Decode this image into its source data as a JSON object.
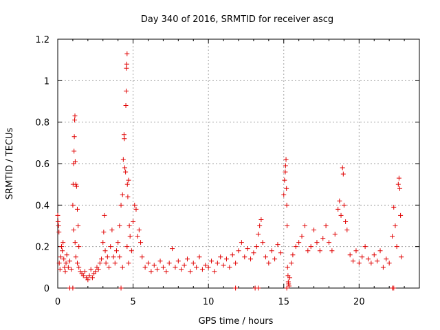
{
  "chart_data": {
    "type": "scatter",
    "title": "Day 340 of 2016, SRMTID for receiver ascg",
    "xlabel": "GPS time / hours",
    "ylabel": "SRMTID / TECUs",
    "xlim": [
      0,
      24
    ],
    "ylim": [
      0,
      1.2
    ],
    "x_ticks": [
      "0",
      "5",
      "10",
      "15",
      "20"
    ],
    "x_tick_values": [
      0,
      5,
      10,
      15,
      20
    ],
    "y_ticks": [
      "0",
      "0.2",
      "0.4",
      "0.6",
      "0.8",
      "1",
      "1.2"
    ],
    "y_tick_values": [
      0,
      0.2,
      0.4,
      0.6,
      0.8,
      1.0,
      1.2
    ],
    "grid": true,
    "marker": "+",
    "series": [
      {
        "name": "SRMTID",
        "color": "#e00000",
        "points": [
          [
            0.0,
            0.35
          ],
          [
            0.02,
            0.32
          ],
          [
            0.05,
            0.3
          ],
          [
            0.08,
            0.27
          ],
          [
            0.1,
            0.12
          ],
          [
            0.15,
            0.09
          ],
          [
            0.2,
            0.15
          ],
          [
            0.25,
            0.2
          ],
          [
            0.3,
            0.18
          ],
          [
            0.35,
            0.22
          ],
          [
            0.4,
            0.14
          ],
          [
            0.45,
            0.1
          ],
          [
            0.5,
            0.08
          ],
          [
            0.55,
            0.12
          ],
          [
            0.6,
            0.16
          ],
          [
            0.7,
            0.1
          ],
          [
            0.8,
            0.13
          ],
          [
            0.9,
            0.09
          ],
          [
            1.0,
            0.4
          ],
          [
            1.02,
            0.5
          ],
          [
            1.05,
            0.6
          ],
          [
            1.08,
            0.66
          ],
          [
            1.1,
            0.73
          ],
          [
            1.12,
            0.81
          ],
          [
            1.14,
            0.83
          ],
          [
            1.16,
            0.61
          ],
          [
            1.2,
            0.5
          ],
          [
            1.25,
            0.49
          ],
          [
            1.3,
            0.38
          ],
          [
            1.35,
            0.3
          ],
          [
            1.4,
            0.2
          ],
          [
            1.05,
            0.28
          ],
          [
            1.15,
            0.22
          ],
          [
            1.2,
            0.15
          ],
          [
            1.3,
            0.12
          ],
          [
            1.4,
            0.1
          ],
          [
            1.5,
            0.08
          ],
          [
            1.6,
            0.07
          ],
          [
            1.7,
            0.06
          ],
          [
            1.8,
            0.08
          ],
          [
            1.9,
            0.05
          ],
          [
            2.0,
            0.04
          ],
          [
            2.1,
            0.06
          ],
          [
            2.2,
            0.09
          ],
          [
            2.3,
            0.05
          ],
          [
            2.4,
            0.07
          ],
          [
            2.5,
            0.08
          ],
          [
            2.6,
            0.1
          ],
          [
            2.7,
            0.09
          ],
          [
            2.8,
            0.12
          ],
          [
            2.9,
            0.14
          ],
          [
            3.0,
            0.22
          ],
          [
            3.05,
            0.27
          ],
          [
            3.1,
            0.35
          ],
          [
            3.15,
            0.18
          ],
          [
            3.2,
            0.12
          ],
          [
            3.3,
            0.15
          ],
          [
            3.4,
            0.1
          ],
          [
            3.5,
            0.2
          ],
          [
            3.6,
            0.28
          ],
          [
            3.7,
            0.15
          ],
          [
            3.8,
            0.12
          ],
          [
            3.9,
            0.18
          ],
          [
            4.0,
            0.22
          ],
          [
            4.1,
            0.3
          ],
          [
            4.2,
            0.4
          ],
          [
            4.3,
            0.45
          ],
          [
            4.35,
            0.62
          ],
          [
            4.4,
            0.74
          ],
          [
            4.42,
            0.72
          ],
          [
            4.45,
            0.58
          ],
          [
            4.5,
            0.56
          ],
          [
            4.52,
            0.88
          ],
          [
            4.54,
            0.95
          ],
          [
            4.56,
            1.06
          ],
          [
            4.58,
            1.08
          ],
          [
            4.6,
            1.13
          ],
          [
            4.62,
            0.5
          ],
          [
            4.65,
            0.44
          ],
          [
            4.7,
            0.52
          ],
          [
            4.75,
            0.3
          ],
          [
            4.8,
            0.25
          ],
          [
            4.1,
            0.15
          ],
          [
            4.3,
            0.1
          ],
          [
            4.6,
            0.2
          ],
          [
            4.7,
            0.12
          ],
          [
            4.9,
            0.18
          ],
          [
            5.0,
            0.32
          ],
          [
            5.1,
            0.4
          ],
          [
            5.2,
            0.38
          ],
          [
            5.3,
            0.25
          ],
          [
            5.4,
            0.28
          ],
          [
            5.5,
            0.22
          ],
          [
            5.6,
            0.15
          ],
          [
            5.8,
            0.1
          ],
          [
            6.0,
            0.12
          ],
          [
            6.2,
            0.08
          ],
          [
            6.4,
            0.11
          ],
          [
            6.6,
            0.09
          ],
          [
            6.8,
            0.13
          ],
          [
            7.0,
            0.1
          ],
          [
            7.2,
            0.08
          ],
          [
            7.4,
            0.12
          ],
          [
            7.6,
            0.19
          ],
          [
            7.8,
            0.1
          ],
          [
            8.0,
            0.13
          ],
          [
            8.2,
            0.09
          ],
          [
            8.4,
            0.11
          ],
          [
            8.6,
            0.14
          ],
          [
            8.8,
            0.08
          ],
          [
            9.0,
            0.12
          ],
          [
            9.2,
            0.1
          ],
          [
            9.4,
            0.15
          ],
          [
            9.6,
            0.09
          ],
          [
            9.8,
            0.11
          ],
          [
            10.0,
            0.1
          ],
          [
            10.2,
            0.13
          ],
          [
            10.4,
            0.08
          ],
          [
            10.6,
            0.12
          ],
          [
            10.8,
            0.15
          ],
          [
            11.0,
            0.11
          ],
          [
            11.2,
            0.14
          ],
          [
            11.4,
            0.1
          ],
          [
            11.6,
            0.16
          ],
          [
            11.8,
            0.12
          ],
          [
            12.0,
            0.18
          ],
          [
            12.2,
            0.22
          ],
          [
            12.4,
            0.15
          ],
          [
            12.6,
            0.19
          ],
          [
            12.8,
            0.14
          ],
          [
            13.0,
            0.17
          ],
          [
            13.2,
            0.2
          ],
          [
            13.3,
            0.26
          ],
          [
            13.4,
            0.3
          ],
          [
            13.5,
            0.33
          ],
          [
            13.6,
            0.22
          ],
          [
            13.8,
            0.15
          ],
          [
            14.0,
            0.12
          ],
          [
            14.2,
            0.18
          ],
          [
            14.4,
            0.14
          ],
          [
            14.6,
            0.21
          ],
          [
            14.8,
            0.17
          ],
          [
            15.0,
            0.45
          ],
          [
            15.05,
            0.52
          ],
          [
            15.1,
            0.56
          ],
          [
            15.12,
            0.59
          ],
          [
            15.15,
            0.62
          ],
          [
            15.18,
            0.48
          ],
          [
            15.2,
            0.4
          ],
          [
            15.22,
            0.3
          ],
          [
            15.25,
            0.1
          ],
          [
            15.28,
            0.06
          ],
          [
            15.3,
            0.03
          ],
          [
            15.32,
            0.02
          ],
          [
            15.35,
            0.01
          ],
          [
            15.4,
            0.05
          ],
          [
            15.5,
            0.12
          ],
          [
            15.6,
            0.16
          ],
          [
            15.8,
            0.2
          ],
          [
            16.0,
            0.22
          ],
          [
            16.2,
            0.25
          ],
          [
            16.4,
            0.3
          ],
          [
            16.6,
            0.18
          ],
          [
            16.8,
            0.2
          ],
          [
            17.0,
            0.28
          ],
          [
            17.2,
            0.22
          ],
          [
            17.4,
            0.18
          ],
          [
            17.6,
            0.24
          ],
          [
            17.8,
            0.3
          ],
          [
            18.0,
            0.22
          ],
          [
            18.2,
            0.18
          ],
          [
            18.4,
            0.26
          ],
          [
            18.6,
            0.38
          ],
          [
            18.7,
            0.42
          ],
          [
            18.8,
            0.35
          ],
          [
            18.9,
            0.58
          ],
          [
            18.95,
            0.55
          ],
          [
            19.0,
            0.4
          ],
          [
            19.1,
            0.32
          ],
          [
            19.2,
            0.28
          ],
          [
            19.4,
            0.16
          ],
          [
            19.6,
            0.13
          ],
          [
            19.8,
            0.18
          ],
          [
            20.0,
            0.12
          ],
          [
            20.2,
            0.15
          ],
          [
            20.4,
            0.2
          ],
          [
            20.6,
            0.14
          ],
          [
            20.8,
            0.12
          ],
          [
            21.0,
            0.16
          ],
          [
            21.2,
            0.13
          ],
          [
            21.4,
            0.18
          ],
          [
            21.6,
            0.1
          ],
          [
            21.8,
            0.14
          ],
          [
            22.0,
            0.12
          ],
          [
            22.2,
            0.25
          ],
          [
            22.3,
            0.39
          ],
          [
            22.4,
            0.3
          ],
          [
            22.5,
            0.2
          ],
          [
            22.6,
            0.5
          ],
          [
            22.65,
            0.53
          ],
          [
            22.7,
            0.48
          ],
          [
            22.75,
            0.35
          ],
          [
            22.8,
            0.15
          ],
          [
            0.8,
            0.0
          ],
          [
            1.0,
            0.0
          ],
          [
            4.2,
            0.0
          ],
          [
            11.8,
            0.0
          ],
          [
            13.1,
            0.0
          ],
          [
            13.3,
            0.0
          ],
          [
            15.2,
            0.0
          ],
          [
            22.2,
            0.0
          ],
          [
            22.3,
            0.0
          ]
        ]
      }
    ]
  }
}
